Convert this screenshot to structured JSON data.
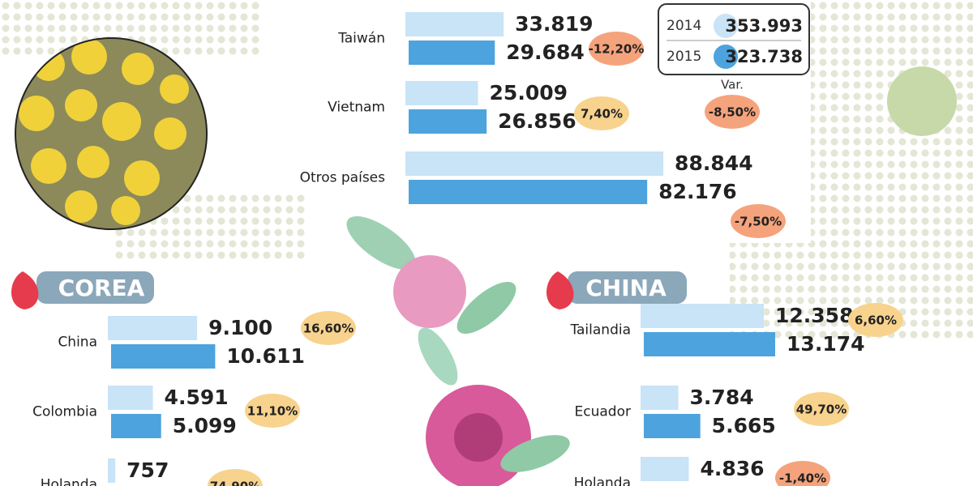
{
  "chart_data": [
    {
      "type": "bar",
      "categories": [
        "Taiwán",
        "Vietnam",
        "Otros países"
      ],
      "series": [
        {
          "name": "2014",
          "color": "#c9e3f7",
          "values": [
            33819,
            25009,
            88844
          ],
          "value_labels": [
            "33.819",
            "25.009",
            "88.844"
          ]
        },
        {
          "name": "2015",
          "color": "#4da3dd",
          "values": [
            29684,
            26856,
            82176
          ],
          "value_labels": [
            "29.684",
            "26.856",
            "82.176"
          ]
        }
      ],
      "changes": [
        -12.2,
        7.4,
        -7.5
      ],
      "change_labels": [
        "-12,20%",
        "7,40%",
        "-7,50%"
      ],
      "totals": [
        353993,
        323738
      ],
      "total_labels": [
        "353.993",
        "323.738"
      ],
      "total_change_title": "Var.",
      "total_change": -8.5,
      "total_change_label": "-8,50%"
    },
    {
      "type": "bar",
      "title": "COREA",
      "categories": [
        "China",
        "Colombia",
        "Holanda"
      ],
      "series": [
        {
          "name": "2014",
          "color": "#c9e3f7",
          "values": [
            9100,
            4591,
            757
          ],
          "value_labels": [
            "9.100",
            "4.591",
            "757"
          ]
        },
        {
          "name": "2015",
          "color": "#4da3dd",
          "values": [
            10611,
            5099,
            null
          ],
          "value_labels": [
            "10.611",
            "5.099",
            null
          ]
        }
      ],
      "changes": [
        16.6,
        11.1,
        74.9
      ],
      "change_labels": [
        "16,60%",
        "11,10%",
        "74,90%"
      ]
    },
    {
      "type": "bar",
      "title": "CHINA",
      "categories": [
        "Tailandia",
        "Ecuador",
        "Holanda"
      ],
      "series": [
        {
          "name": "2014",
          "color": "#c9e3f7",
          "values": [
            12358,
            3784,
            4836
          ],
          "value_labels": [
            "12.358",
            "3.784",
            "4.836"
          ]
        },
        {
          "name": "2015",
          "color": "#4da3dd",
          "values": [
            13174,
            5665,
            null
          ],
          "value_labels": [
            "13.174",
            "5.665",
            null
          ]
        }
      ],
      "changes": [
        6.6,
        49.7,
        -1.4
      ],
      "change_labels": [
        "6,60%",
        "49,70%",
        "-1,40%"
      ]
    }
  ]
}
